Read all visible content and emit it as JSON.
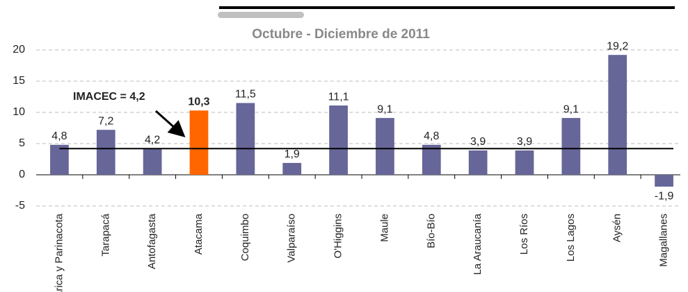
{
  "chart_data": {
    "type": "bar",
    "title": "Octubre - Diciembre de 2011",
    "categories": [
      "Arica y Parinacota",
      "Tarapacá",
      "Antofagasta",
      "Atacama",
      "Coquimbo",
      "Valparaíso",
      "O'Higgins",
      "Maule",
      "Bío-Bío",
      "La Araucanía",
      "Los Ríos",
      "Los Lagos",
      "Aysén",
      "Magallanes"
    ],
    "values": [
      4.8,
      7.2,
      4.2,
      10.3,
      11.5,
      1.9,
      11.1,
      9.1,
      4.8,
      3.9,
      3.9,
      9.1,
      19.2,
      -1.9
    ],
    "value_labels": [
      "4,8",
      "7,2",
      "4,2",
      "10,3",
      "11,5",
      "1,9",
      "11,1",
      "9,1",
      "4,8",
      "3,9",
      "3,9",
      "9,1",
      "19,2",
      "-1,9"
    ],
    "colors": [
      "#666699",
      "#666699",
      "#666699",
      "#ff6600",
      "#666699",
      "#666699",
      "#666699",
      "#666699",
      "#666699",
      "#666699",
      "#666699",
      "#666699",
      "#666699",
      "#666699"
    ],
    "ylim": [
      -5,
      20
    ],
    "yticks": [
      -5,
      0,
      5,
      10,
      15,
      20
    ],
    "grid": true,
    "reference_line": {
      "value": 4.2,
      "label": "IMACEC = 4,2"
    }
  }
}
